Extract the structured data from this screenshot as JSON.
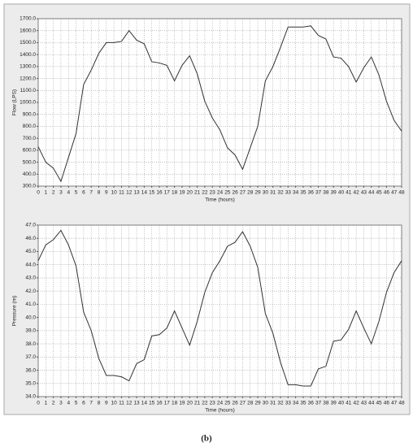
{
  "caption": "(b)",
  "chart_data": [
    {
      "type": "line",
      "y_label": "Flow (LPS)",
      "x_label": "Time (hours)",
      "color": "#333333",
      "grid": true,
      "x": [
        0,
        1,
        2,
        3,
        4,
        5,
        6,
        7,
        8,
        9,
        10,
        11,
        12,
        13,
        14,
        15,
        16,
        17,
        18,
        19,
        20,
        21,
        22,
        23,
        24,
        25,
        26,
        27,
        28,
        29,
        30,
        31,
        32,
        33,
        34,
        35,
        36,
        37,
        38,
        39,
        40,
        41,
        42,
        43,
        44,
        45,
        46,
        47,
        48
      ],
      "values": [
        630,
        500,
        450,
        340,
        540,
        740,
        1150,
        1270,
        1410,
        1500,
        1500,
        1510,
        1600,
        1520,
        1490,
        1340,
        1330,
        1310,
        1180,
        1310,
        1390,
        1240,
        1010,
        870,
        770,
        620,
        560,
        440,
        620,
        800,
        1180,
        1300,
        1460,
        1630,
        1630,
        1630,
        1640,
        1560,
        1530,
        1380,
        1370,
        1300,
        1170,
        1290,
        1380,
        1230,
        1010,
        850,
        760
      ],
      "xlim": [
        0,
        48
      ],
      "xticks": [
        0,
        1,
        2,
        3,
        4,
        5,
        6,
        7,
        8,
        9,
        10,
        11,
        12,
        13,
        14,
        15,
        16,
        17,
        18,
        19,
        20,
        21,
        22,
        23,
        24,
        25,
        26,
        27,
        28,
        29,
        30,
        31,
        32,
        33,
        34,
        35,
        36,
        37,
        38,
        39,
        40,
        41,
        42,
        43,
        44,
        45,
        46,
        47,
        48
      ],
      "ylim": [
        300,
        1700
      ],
      "yticks": [
        {
          "value": 300,
          "label": "300.0"
        },
        {
          "value": 400,
          "label": "400.0"
        },
        {
          "value": 500,
          "label": "500.0"
        },
        {
          "value": 600,
          "label": "600.0"
        },
        {
          "value": 700,
          "label": "700.0"
        },
        {
          "value": 800,
          "label": "800.0"
        },
        {
          "value": 900,
          "label": "900.0"
        },
        {
          "value": 1000,
          "label": "1000.0"
        },
        {
          "value": 1100,
          "label": "1100.0"
        },
        {
          "value": 1200,
          "label": "1200.0"
        },
        {
          "value": 1300,
          "label": "1300.0"
        },
        {
          "value": 1400,
          "label": "1400.0"
        },
        {
          "value": 1500,
          "label": "1500.0"
        },
        {
          "value": 1600,
          "label": "1600.0"
        },
        {
          "value": 1700,
          "label": "1700.0"
        }
      ]
    },
    {
      "type": "line",
      "y_label": "Pressure (m)",
      "x_label": "Time (hours)",
      "color": "#333333",
      "grid": true,
      "x": [
        0,
        1,
        2,
        3,
        4,
        5,
        6,
        7,
        8,
        9,
        10,
        11,
        12,
        13,
        14,
        15,
        16,
        17,
        18,
        19,
        20,
        21,
        22,
        23,
        24,
        25,
        26,
        27,
        28,
        29,
        30,
        31,
        32,
        33,
        34,
        35,
        36,
        37,
        38,
        39,
        40,
        41,
        42,
        43,
        44,
        45,
        46,
        47,
        48
      ],
      "values": [
        44.3,
        45.5,
        45.9,
        46.6,
        45.5,
        43.9,
        40.4,
        39.0,
        36.9,
        35.6,
        35.6,
        35.5,
        35.2,
        36.5,
        36.8,
        38.6,
        38.7,
        39.2,
        40.5,
        39.2,
        37.9,
        39.7,
        41.9,
        43.4,
        44.3,
        45.4,
        45.7,
        46.5,
        45.4,
        43.8,
        40.3,
        38.8,
        36.6,
        34.9,
        34.9,
        34.8,
        34.8,
        36.1,
        36.3,
        38.2,
        38.3,
        39.1,
        40.5,
        39.2,
        38.0,
        39.7,
        41.9,
        43.4,
        44.3
      ],
      "xlim": [
        0,
        48
      ],
      "xticks": [
        0,
        1,
        2,
        3,
        4,
        5,
        6,
        7,
        8,
        9,
        10,
        11,
        12,
        13,
        14,
        15,
        16,
        17,
        18,
        19,
        20,
        21,
        22,
        23,
        24,
        25,
        26,
        27,
        28,
        29,
        30,
        31,
        32,
        33,
        34,
        35,
        36,
        37,
        38,
        39,
        40,
        41,
        42,
        43,
        44,
        45,
        46,
        47,
        48
      ],
      "ylim": [
        34,
        47
      ],
      "yticks": [
        {
          "value": 34,
          "label": "34.0"
        },
        {
          "value": 35,
          "label": "35.0"
        },
        {
          "value": 36,
          "label": "36.0"
        },
        {
          "value": 37,
          "label": "37.0"
        },
        {
          "value": 38,
          "label": "38.0"
        },
        {
          "value": 39,
          "label": "39.0"
        },
        {
          "value": 40,
          "label": "40.0"
        },
        {
          "value": 41,
          "label": "41.0"
        },
        {
          "value": 42,
          "label": "42.0"
        },
        {
          "value": 43,
          "label": "43.0"
        },
        {
          "value": 44,
          "label": "44.0"
        },
        {
          "value": 45,
          "label": "45.0"
        },
        {
          "value": 46,
          "label": "46.0"
        },
        {
          "value": 47,
          "label": "47.0"
        }
      ]
    }
  ]
}
